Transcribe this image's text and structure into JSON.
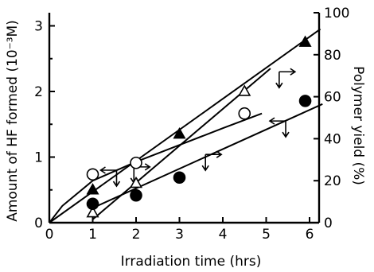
{
  "chart_data": {
    "type": "scatter",
    "xlabel": "Irradiation time (hrs)",
    "ylabel_left": "Amount of HF formed (10⁻³M)",
    "ylabel_right": "Polymer yield (%)",
    "xlim": [
      0,
      6.5
    ],
    "ylim_left": [
      0,
      3.2
    ],
    "ylim_right": [
      0,
      100
    ],
    "x_ticks": [
      "0",
      "1",
      "2",
      "3",
      "4",
      "5",
      "6"
    ],
    "y_left_ticks": [
      "0",
      "1",
      "2",
      "3"
    ],
    "y_right_ticks": [
      "0",
      "20",
      "40",
      "60",
      "80",
      "100"
    ],
    "series": [
      {
        "marker": "filled-triangle",
        "axis": "left",
        "x": [
          1,
          3,
          5.9
        ],
        "y": [
          0.5,
          1.35,
          2.75
        ],
        "fit": [
          [
            0,
            0
          ],
          [
            6.25,
            2.95
          ]
        ]
      },
      {
        "marker": "open-triangle",
        "axis": "left",
        "x": [
          1,
          2,
          4.5
        ],
        "y": [
          0.15,
          0.6,
          2.0
        ],
        "fit": [
          [
            1,
            0.05
          ],
          [
            5.1,
            2.35
          ]
        ]
      },
      {
        "marker": "open-circle",
        "axis": "right",
        "x": [
          1,
          2,
          4.5
        ],
        "y": [
          23,
          28.5,
          52
        ],
        "fit": [
          [
            0,
            0
          ],
          [
            0.3,
            8
          ],
          [
            1,
            20
          ],
          [
            2,
            29
          ],
          [
            3,
            37
          ],
          [
            4,
            45
          ],
          [
            4.9,
            52
          ]
        ]
      },
      {
        "marker": "filled-circle",
        "axis": "right",
        "x": [
          1,
          2,
          3,
          5.9
        ],
        "y": [
          9,
          13,
          21.5,
          58
        ],
        "fit": [
          [
            1,
            7
          ],
          [
            6.3,
            56.5
          ]
        ]
      }
    ],
    "axis_arrows": [
      {
        "x": 1.55,
        "y": 0.8,
        "direction": "left"
      },
      {
        "x": 1.95,
        "y": 0.85,
        "direction": "right"
      },
      {
        "x": 3.6,
        "y": 1.04,
        "direction": "right"
      },
      {
        "x": 5.3,
        "y": 2.3,
        "direction": "right"
      },
      {
        "x": 5.45,
        "y": 1.55,
        "direction": "left"
      }
    ]
  }
}
